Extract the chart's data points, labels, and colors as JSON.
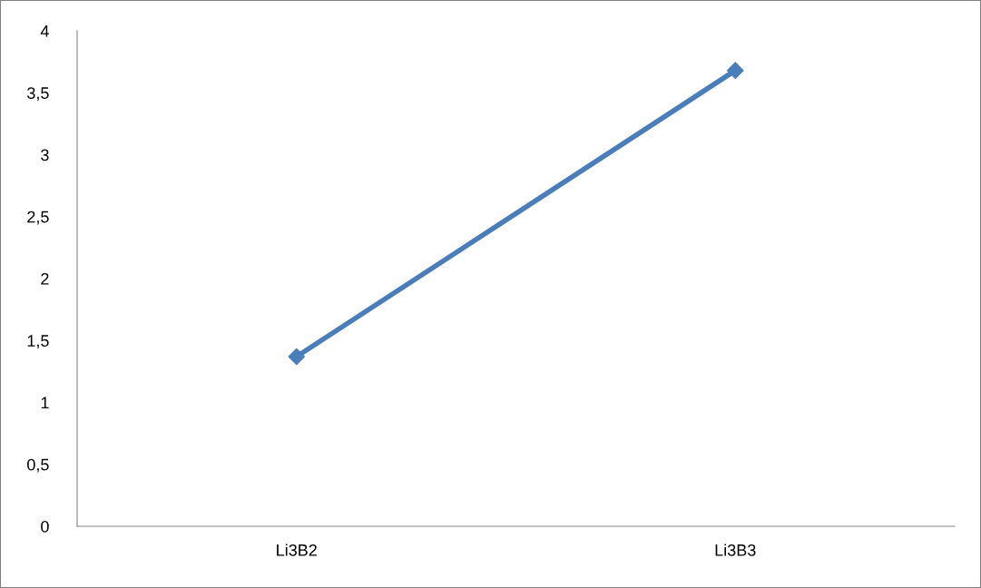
{
  "chart_data": {
    "type": "line",
    "categories": [
      "Li3B2",
      "Li3B3"
    ],
    "series": [
      {
        "color": "#4a7ebb",
        "values": [
          1.37,
          3.68
        ]
      }
    ],
    "ylim": [
      0,
      4
    ],
    "yticks": [
      0,
      {
        "value": 0.5,
        "label": "0,5"
      },
      1,
      {
        "value": 1.5,
        "label": "1,5"
      },
      2,
      {
        "value": 2.5,
        "label": "2,5"
      },
      3,
      {
        "value": 3.5,
        "label": "3,5"
      },
      4
    ],
    "grid": false,
    "marker": "diamond",
    "line_style": "solid"
  }
}
